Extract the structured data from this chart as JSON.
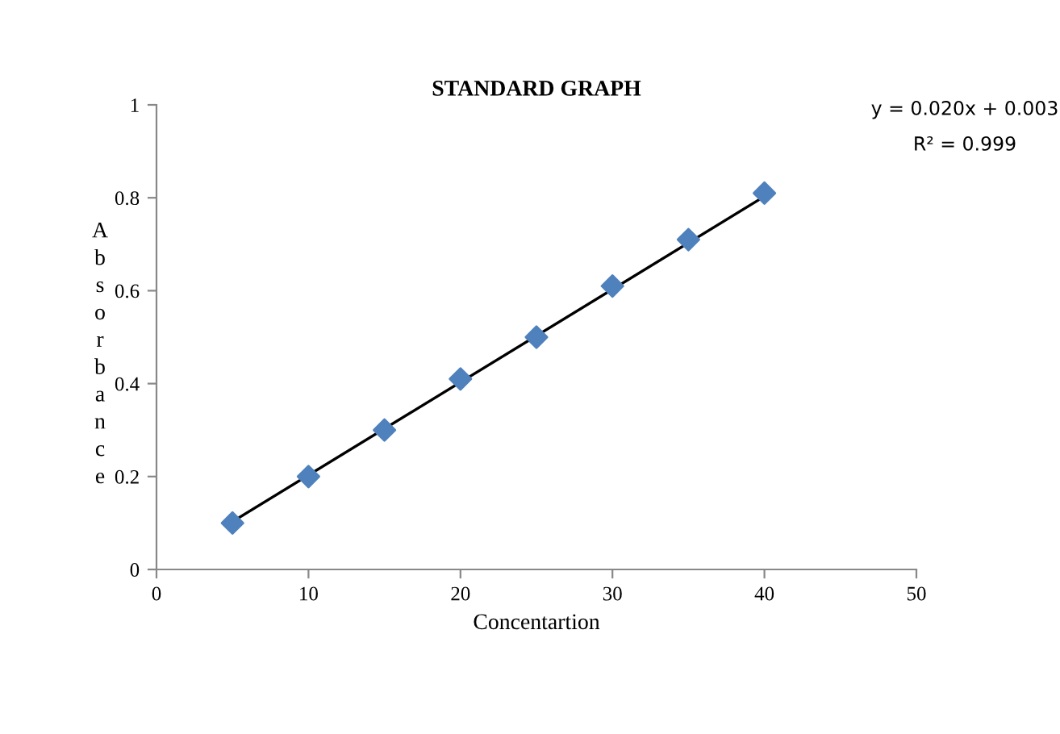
{
  "chart_data": {
    "type": "scatter",
    "title": "STANDARD GRAPH",
    "xlabel": "Concentartion",
    "ylabel": "Absorbance",
    "x": [
      5,
      10,
      15,
      20,
      25,
      30,
      35,
      40
    ],
    "series": [
      {
        "color": "#4f81bd",
        "marker": "diamond",
        "values": [
          0.1,
          0.2,
          0.3,
          0.41,
          0.5,
          0.61,
          0.71,
          0.81
        ]
      },
      {
        "type": "line",
        "color": "#000000",
        "marker": "none",
        "x": [
          5,
          40
        ],
        "values": [
          0.103,
          0.803
        ]
      }
    ],
    "xlim": [
      0,
      50
    ],
    "xticks": [
      0,
      10,
      20,
      30,
      40,
      50
    ],
    "ylim": [
      0,
      1
    ],
    "yticks": [
      0,
      0.2,
      0.4,
      0.6,
      0.8,
      1
    ],
    "annotations": [
      "y = 0.020x + 0.003",
      "R² = 0.999"
    ],
    "grid": false,
    "legend": false
  }
}
